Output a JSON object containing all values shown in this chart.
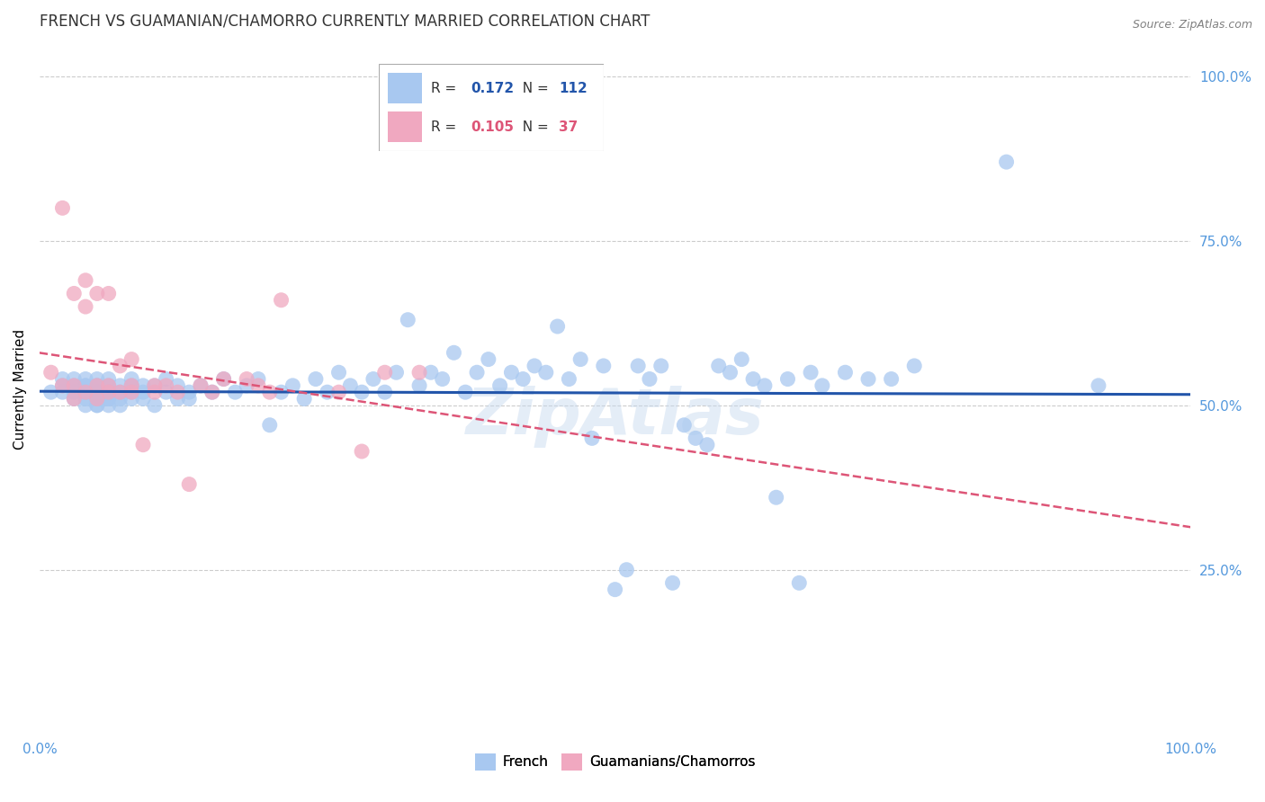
{
  "title": "FRENCH VS GUAMANIAN/CHAMORRO CURRENTLY MARRIED CORRELATION CHART",
  "source": "Source: ZipAtlas.com",
  "ylabel": "Currently Married",
  "watermark": "ZipAtlas",
  "bottom_legend": [
    "French",
    "Guamanians/Chamorros"
  ],
  "xlim": [
    0,
    1
  ],
  "ylim": [
    0,
    1
  ],
  "xtick_labels": [
    "0.0%",
    "100.0%"
  ],
  "ytick_labels": [
    "25.0%",
    "50.0%",
    "75.0%",
    "100.0%"
  ],
  "ytick_positions": [
    0.25,
    0.5,
    0.75,
    1.0
  ],
  "grid_color": "#cccccc",
  "blue_color": "#a8c8f0",
  "pink_color": "#f0a8c0",
  "blue_line_color": "#2255aa",
  "pink_line_color": "#dd5577",
  "right_label_color": "#5599dd",
  "title_color": "#333333",
  "title_fontsize": 12,
  "axis_label_fontsize": 11,
  "tick_fontsize": 11,
  "legend_r1": "0.172",
  "legend_n1": "112",
  "legend_r2": "0.105",
  "legend_n2": "37",
  "french_x": [
    0.01,
    0.02,
    0.02,
    0.02,
    0.03,
    0.03,
    0.03,
    0.03,
    0.04,
    0.04,
    0.04,
    0.04,
    0.04,
    0.04,
    0.04,
    0.05,
    0.05,
    0.05,
    0.05,
    0.05,
    0.05,
    0.05,
    0.05,
    0.05,
    0.05,
    0.06,
    0.06,
    0.06,
    0.06,
    0.06,
    0.06,
    0.06,
    0.07,
    0.07,
    0.07,
    0.07,
    0.08,
    0.08,
    0.08,
    0.08,
    0.09,
    0.09,
    0.09,
    0.1,
    0.1,
    0.11,
    0.11,
    0.12,
    0.12,
    0.13,
    0.13,
    0.14,
    0.15,
    0.16,
    0.17,
    0.18,
    0.19,
    0.2,
    0.21,
    0.22,
    0.23,
    0.24,
    0.25,
    0.26,
    0.27,
    0.28,
    0.29,
    0.3,
    0.31,
    0.32,
    0.33,
    0.34,
    0.35,
    0.36,
    0.37,
    0.38,
    0.39,
    0.4,
    0.41,
    0.42,
    0.43,
    0.44,
    0.45,
    0.46,
    0.47,
    0.48,
    0.49,
    0.5,
    0.51,
    0.52,
    0.53,
    0.54,
    0.55,
    0.56,
    0.57,
    0.58,
    0.59,
    0.6,
    0.61,
    0.62,
    0.63,
    0.64,
    0.65,
    0.66,
    0.67,
    0.68,
    0.7,
    0.72,
    0.74,
    0.76,
    0.84,
    0.92
  ],
  "french_y": [
    0.52,
    0.54,
    0.53,
    0.52,
    0.51,
    0.53,
    0.54,
    0.52,
    0.5,
    0.52,
    0.53,
    0.54,
    0.51,
    0.52,
    0.53,
    0.5,
    0.51,
    0.52,
    0.53,
    0.54,
    0.52,
    0.51,
    0.5,
    0.53,
    0.52,
    0.51,
    0.52,
    0.53,
    0.5,
    0.54,
    0.52,
    0.51,
    0.52,
    0.53,
    0.51,
    0.5,
    0.53,
    0.52,
    0.51,
    0.54,
    0.52,
    0.53,
    0.51,
    0.53,
    0.5,
    0.54,
    0.52,
    0.51,
    0.53,
    0.52,
    0.51,
    0.53,
    0.52,
    0.54,
    0.52,
    0.53,
    0.54,
    0.47,
    0.52,
    0.53,
    0.51,
    0.54,
    0.52,
    0.55,
    0.53,
    0.52,
    0.54,
    0.52,
    0.55,
    0.63,
    0.53,
    0.55,
    0.54,
    0.58,
    0.52,
    0.55,
    0.57,
    0.53,
    0.55,
    0.54,
    0.56,
    0.55,
    0.62,
    0.54,
    0.57,
    0.45,
    0.56,
    0.22,
    0.25,
    0.56,
    0.54,
    0.56,
    0.23,
    0.47,
    0.45,
    0.44,
    0.56,
    0.55,
    0.57,
    0.54,
    0.53,
    0.36,
    0.54,
    0.23,
    0.55,
    0.53,
    0.55,
    0.54,
    0.54,
    0.56,
    0.87,
    0.53
  ],
  "chamorro_x": [
    0.01,
    0.02,
    0.02,
    0.03,
    0.03,
    0.03,
    0.04,
    0.04,
    0.04,
    0.05,
    0.05,
    0.05,
    0.06,
    0.06,
    0.06,
    0.07,
    0.07,
    0.08,
    0.08,
    0.08,
    0.09,
    0.1,
    0.1,
    0.11,
    0.12,
    0.13,
    0.14,
    0.15,
    0.16,
    0.18,
    0.19,
    0.2,
    0.21,
    0.26,
    0.28,
    0.3,
    0.33
  ],
  "chamorro_y": [
    0.55,
    0.53,
    0.8,
    0.51,
    0.67,
    0.53,
    0.65,
    0.69,
    0.52,
    0.51,
    0.53,
    0.67,
    0.52,
    0.67,
    0.53,
    0.56,
    0.52,
    0.57,
    0.52,
    0.53,
    0.44,
    0.53,
    0.52,
    0.53,
    0.52,
    0.38,
    0.53,
    0.52,
    0.54,
    0.54,
    0.53,
    0.52,
    0.66,
    0.52,
    0.43,
    0.55,
    0.55
  ]
}
